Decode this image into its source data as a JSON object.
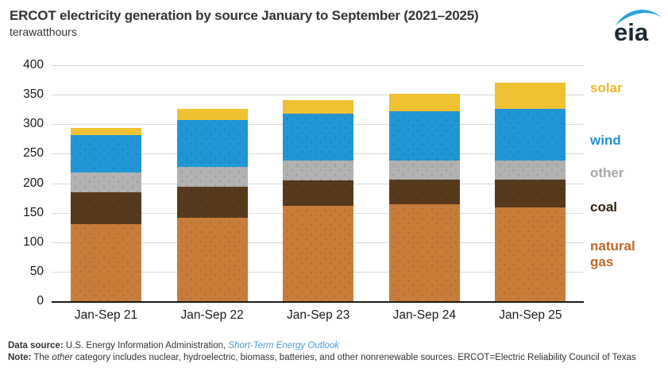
{
  "header": {
    "title": "ERCOT electricity generation by source January to September (2021–2025)",
    "subtitle": "terawatthours",
    "logo_text": "eia"
  },
  "chart_data": {
    "type": "bar",
    "stacked": true,
    "title": "ERCOT electricity generation by source January to September (2021–2025)",
    "ylabel": "terawatthours",
    "xlabel": "",
    "ylim": [
      0,
      400
    ],
    "ytick_step": 50,
    "grid": true,
    "legend_position": "right",
    "categories": [
      "Jan-Sep 21",
      "Jan-Sep 22",
      "Jan-Sep 23",
      "Jan-Sep 24",
      "Jan-Sep 25"
    ],
    "series": [
      {
        "name": "natural gas",
        "color": "#c87d3a",
        "dotted": true,
        "values": [
          130,
          141,
          161,
          165,
          159
        ]
      },
      {
        "name": "coal",
        "color": "#573a1d",
        "dotted": true,
        "values": [
          55,
          53,
          44,
          41,
          47
        ]
      },
      {
        "name": "other",
        "color": "#b1b1b1",
        "dotted": true,
        "values": [
          33,
          34,
          33,
          33,
          33
        ]
      },
      {
        "name": "wind",
        "color": "#2196d5",
        "dotted": true,
        "values": [
          64,
          79,
          80,
          83,
          87
        ]
      },
      {
        "name": "solar",
        "color": "#efc133",
        "dotted": false,
        "values": [
          12,
          19,
          23,
          29,
          44
        ]
      }
    ],
    "totals": [
      294,
      326,
      341,
      351,
      370
    ]
  },
  "legend": {
    "items": [
      {
        "label": "solar",
        "color": "#efb92f"
      },
      {
        "label": "wind",
        "color": "#2394d2"
      },
      {
        "label": "other",
        "color": "#a8a8a8"
      },
      {
        "label": "coal",
        "color": "#2e2012"
      },
      {
        "label": "natural gas",
        "color": "#bf6728"
      }
    ]
  },
  "footer": {
    "data_source_label": "Data source:",
    "data_source_text": "U.S. Energy Information Administration,",
    "data_source_link": "Short-Term Energy Outlook",
    "note_label": "Note:",
    "note_pre": "The",
    "note_italic": "other",
    "note_post": "category includes nuclear, hydroelectric, biomass, batteries, and other nonrenewable sources. ERCOT=Electric Reliability Council of Texas"
  }
}
